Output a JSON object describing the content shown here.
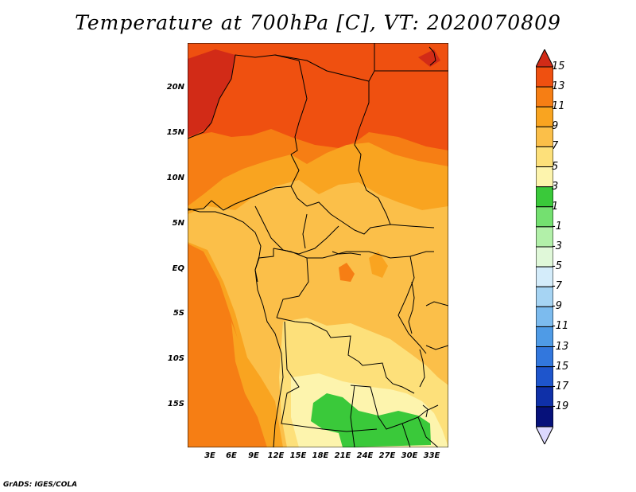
{
  "title": "Temperature at 700hPa [C], VT: 2020070809",
  "credit": "GrADS: IGES/COLA",
  "map": {
    "lat_labels": [
      "20N",
      "15N",
      "10N",
      "5N",
      "EQ",
      "5S",
      "10S",
      "15S"
    ],
    "lon_labels": [
      "3E",
      "6E",
      "9E",
      "12E",
      "15E",
      "18E",
      "21E",
      "24E",
      "27E",
      "30E",
      "33E"
    ]
  },
  "colorbar": {
    "labels": [
      "15",
      "13",
      "11",
      "9",
      "7",
      "5",
      "3",
      "1",
      "-1",
      "-3",
      "-5",
      "-7",
      "-9",
      "-11",
      "-13",
      "-15",
      "-17",
      "-19"
    ],
    "colors": [
      "#d22b17",
      "#ef5010",
      "#f67e14",
      "#f9a420",
      "#fbbf49",
      "#fde07a",
      "#fdf4ad",
      "#3ac93a",
      "#74e070",
      "#b2f0a9",
      "#e0f8d9",
      "#d4ecfa",
      "#a6d4f3",
      "#7cbbee",
      "#4f9be6",
      "#3277dd",
      "#1e55cc",
      "#0f30a8",
      "#06117a",
      "#dcd9ff"
    ]
  }
}
